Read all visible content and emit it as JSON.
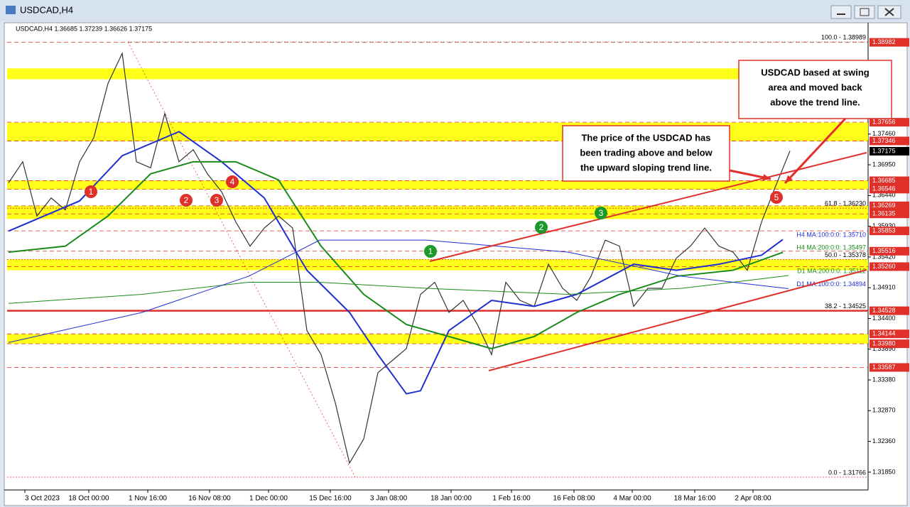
{
  "window_title": "USDCAD,H4",
  "chart_data": {
    "type": "line",
    "info": "USDCAD,H4 1.36685 1.37239 1.36626 1.37175",
    "xlim": [
      -0.1,
      60.5
    ],
    "ylim": [
      1.31554,
      1.39272
    ],
    "xticks": [
      {
        "value": 1.15,
        "label": "3 Oct 2023"
      },
      {
        "value": 5.65,
        "label": "18 Oct 00:00"
      },
      {
        "value": 9.8,
        "label": "1 Nov 16:00"
      },
      {
        "value": 14.15,
        "label": "16 Nov 08:00"
      },
      {
        "value": 18.3,
        "label": "1 Dec 00:00"
      },
      {
        "value": 22.65,
        "label": "15 Dec 16:00"
      },
      {
        "value": 26.75,
        "label": "3 Jan 08:00"
      },
      {
        "value": 31.15,
        "label": "18 Jan 00:00"
      },
      {
        "value": 35.4,
        "label": "1 Feb 16:00"
      },
      {
        "value": 39.8,
        "label": "16 Feb 08:00"
      },
      {
        "value": 43.9,
        "label": "4 Mar 00:00"
      },
      {
        "value": 48.3,
        "label": "18 Mar 16:00"
      },
      {
        "value": 52.4,
        "label": "2 Apr 08:00"
      }
    ],
    "yticks": [
      {
        "value": 1.3746,
        "label": "1.37460"
      },
      {
        "value": 1.3695,
        "label": "1.36950"
      },
      {
        "value": 1.3644,
        "label": "1.36440"
      },
      {
        "value": 1.3593,
        "label": "1.35930"
      },
      {
        "value": 1.3542,
        "label": "1.35420"
      },
      {
        "value": 1.3491,
        "label": "1.34910"
      },
      {
        "value": 1.344,
        "label": "1.34400"
      },
      {
        "value": 1.3389,
        "label": "1.33890"
      },
      {
        "value": 1.3338,
        "label": "1.33380"
      },
      {
        "value": 1.3287,
        "label": "1.32870"
      },
      {
        "value": 1.3236,
        "label": "1.32360"
      },
      {
        "value": 1.3185,
        "label": "1.31850"
      }
    ],
    "levels": [
      {
        "value": 1.38982,
        "label": "1.38982"
      },
      {
        "value": 1.37656,
        "label": "1.37656"
      },
      {
        "value": 1.37346,
        "label": "1.37346"
      },
      {
        "value": 1.36685,
        "label": "1.36685"
      },
      {
        "value": 1.36546,
        "label": "1.36546"
      },
      {
        "value": 1.36269,
        "label": "1.36269"
      },
      {
        "value": 1.36135,
        "label": "1.36135"
      },
      {
        "value": 1.35853,
        "label": "1.35853"
      },
      {
        "value": 1.35516,
        "label": "1.35516"
      },
      {
        "value": 1.3526,
        "label": "1.35260"
      },
      {
        "value": 1.34528,
        "label": "1.34528"
      },
      {
        "value": 1.34144,
        "label": "1.34144"
      },
      {
        "value": 1.3398,
        "label": "1.33980"
      },
      {
        "value": 1.33587,
        "label": "1.33587"
      }
    ],
    "level_color": "#e0302a",
    "current_price": {
      "value": 1.37175,
      "label": "1.37175"
    },
    "key_level": 1.34528,
    "zones": [
      [
        1.3837,
        1.3855
      ],
      [
        1.3734,
        1.3765
      ],
      [
        1.3654,
        1.3669
      ],
      [
        1.3605,
        1.3627
      ],
      [
        1.352,
        1.3538
      ],
      [
        1.3398,
        1.3414
      ]
    ],
    "zone_color": "#ffff00",
    "fib": [
      {
        "value": 1.38989,
        "label": "100.0 - 1.38989"
      },
      {
        "value": 1.3623,
        "label": "61.8 - 1.36230"
      },
      {
        "value": 1.35378,
        "label": "50.0 - 1.35378"
      },
      {
        "value": 1.34525,
        "label": "38.2 - 1.34525"
      },
      {
        "value": 1.31766,
        "label": "0.0 - 1.31766"
      }
    ],
    "series": [
      {
        "name": "USDCAD",
        "color": "#333333",
        "x": [
          0,
          1,
          2,
          3,
          4,
          5,
          6,
          7,
          8,
          9,
          10,
          11,
          12,
          13,
          14,
          15,
          16,
          17,
          18,
          19,
          20,
          21,
          22,
          23,
          24,
          25,
          26,
          27,
          28,
          29,
          30,
          31,
          32,
          33,
          34,
          35,
          36,
          37,
          38,
          39,
          40,
          41,
          42,
          43,
          44,
          45,
          46,
          47,
          48,
          49,
          50,
          51,
          52,
          53,
          54,
          55
        ],
        "values": [
          1.3665,
          1.37,
          1.361,
          1.364,
          1.362,
          1.37,
          1.374,
          1.383,
          1.388,
          1.37,
          1.369,
          1.378,
          1.37,
          1.372,
          1.368,
          1.365,
          1.36,
          1.356,
          1.359,
          1.361,
          1.359,
          1.342,
          1.338,
          1.33,
          1.32,
          1.324,
          1.335,
          1.337,
          1.339,
          1.348,
          1.35,
          1.345,
          1.347,
          1.343,
          1.338,
          1.35,
          1.347,
          1.346,
          1.353,
          1.349,
          1.347,
          1.351,
          1.357,
          1.356,
          1.346,
          1.349,
          1.349,
          1.354,
          1.356,
          1.359,
          1.356,
          1.355,
          1.352,
          1.36,
          1.366,
          1.3718
        ]
      },
      {
        "name": "H4 MA:100:0:0: 1.35710",
        "color": "#1f2fd0",
        "width": 2,
        "x": [
          0,
          5,
          8,
          12,
          15,
          18,
          21,
          24,
          26,
          28,
          29,
          31,
          34,
          37,
          40,
          44,
          47,
          50,
          53,
          54.5
        ],
        "values": [
          1.3585,
          1.3635,
          1.371,
          1.375,
          1.37,
          1.364,
          1.352,
          1.345,
          1.338,
          1.3315,
          1.332,
          1.342,
          1.347,
          1.346,
          1.348,
          1.353,
          1.352,
          1.353,
          1.3545,
          1.3571
        ]
      },
      {
        "name": "H4 MA:200:0:0: 1.35497",
        "color": "#1a8a1a",
        "width": 2,
        "x": [
          0,
          4,
          7,
          10,
          13,
          16,
          19,
          22,
          25,
          28,
          31,
          34,
          37,
          40,
          43,
          47,
          51,
          54.5
        ],
        "values": [
          1.355,
          1.356,
          1.361,
          1.368,
          1.37,
          1.37,
          1.367,
          1.356,
          1.348,
          1.343,
          1.341,
          1.339,
          1.341,
          1.345,
          1.348,
          1.351,
          1.352,
          1.35497
        ]
      },
      {
        "name": "D1 MA:200:0:0: 1.35112",
        "color": "#1a8a1a",
        "width": 1,
        "x": [
          0,
          9.4,
          16.9,
          21.9,
          29.4,
          39.4,
          47.4,
          54.9
        ],
        "values": [
          1.3465,
          1.348,
          1.35,
          1.35,
          1.349,
          1.348,
          1.349,
          1.35112
        ]
      },
      {
        "name": "D1 MA:100:0:0: 1.34894",
        "color": "#1f2fd0",
        "width": 1,
        "x": [
          0,
          9.4,
          16.9,
          21.9,
          29.4,
          39.4,
          47.4,
          54.9
        ],
        "values": [
          1.34,
          1.345,
          1.351,
          1.357,
          1.357,
          1.355,
          1.351,
          1.34894
        ]
      }
    ],
    "markers": [
      {
        "label": "1",
        "color": "#e0302a"
      },
      {
        "label": "2",
        "color": "#e0302a"
      },
      {
        "label": "3",
        "color": "#e0302a"
      },
      {
        "label": "4",
        "color": "#e0302a"
      },
      {
        "label": "5",
        "color": "#e0302a"
      },
      {
        "label": "1",
        "color": "#1a9a2a"
      },
      {
        "label": "2",
        "color": "#1a9a2a"
      },
      {
        "label": "3",
        "color": "#1a9a2a"
      }
    ],
    "annotations": [
      {
        "lines": [
          "USDCAD based at swing",
          "area and moved back",
          "above the trend line."
        ]
      },
      {
        "lines": [
          "The price of the USDCAD has",
          "been trading above and below",
          "the upward sloping trend line."
        ]
      }
    ]
  }
}
